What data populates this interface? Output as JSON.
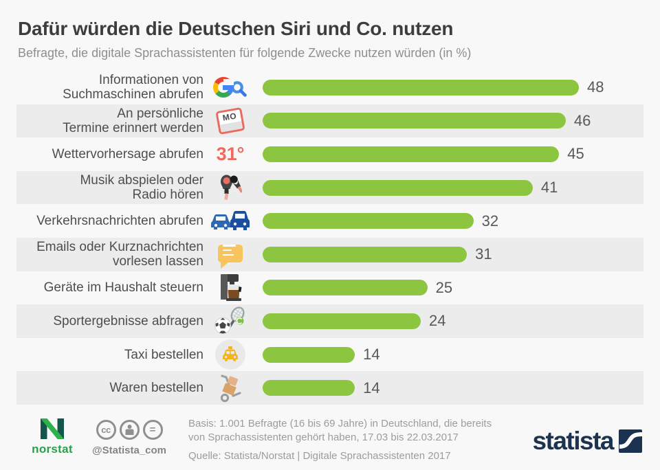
{
  "page": {
    "title": "Dafür würden die Deutschen Siri und Co. nutzen",
    "subtitle": "Befragte, die digitale Sprachassistenten für folgende Zwecke nutzen würden (in %)"
  },
  "chart_data": {
    "type": "bar",
    "orientation": "horizontal",
    "title": "Dafür würden die Deutschen Siri und Co. nutzen",
    "unit": "%",
    "xlim": [
      0,
      48
    ],
    "max": 48,
    "grid": false,
    "bar_color": "#8cc540",
    "categories": [
      "Informationen von\nSuchmaschinen abrufen",
      "An persönliche\nTermine erinnert werden",
      "Wettervorhersage abrufen",
      "Musik abspielen oder\nRadio hören",
      "Verkehrsnachrichten abrufen",
      "Emails oder Kurznachrichten\nvorlesen lassen",
      "Geräte im Haushalt steuern",
      "Sportergebnisse abfragen",
      "Taxi bestellen",
      "Waren bestellen"
    ],
    "values": [
      48,
      46,
      45,
      41,
      32,
      31,
      25,
      24,
      14,
      14
    ],
    "icons": [
      "google-search-icon",
      "calendar-icon",
      "temperature-icon",
      "earbuds-icon",
      "cars-icon",
      "message-icon",
      "coffee-machine-icon",
      "sports-icon",
      "taxi-icon",
      "handtruck-icon"
    ]
  },
  "icons_text": {
    "calendar": "MO",
    "temperature": "31°"
  },
  "footer": {
    "basis": "Basis: 1.001 Befragte (16 bis 69 Jahre) in Deutschland, die bereits\nvon Sprachassistenten gehört haben, 17.03 bis 22.03.2017",
    "source": "Quelle: Statista/Norstat | Digitale Sprachassistenten 2017",
    "norstat_label": "norstat",
    "twitter_handle": "@Statista_com",
    "statista_label": "statista",
    "cc_label": "cc",
    "cc_equal": "="
  },
  "colors": {
    "background": "#f8f8f8",
    "row_shade": "#ececec",
    "bar": "#8cc540",
    "coral": "#e96a5e",
    "statista_navy": "#1b3350",
    "norstat_green": "#2fb14a"
  }
}
